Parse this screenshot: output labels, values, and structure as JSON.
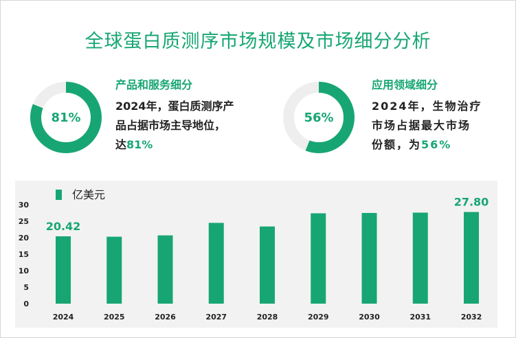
{
  "title": "全球蛋白质测序市场规模及市场细分分析",
  "left_panel": {
    "heading": "产品和服务细分",
    "percent_label": "81%",
    "percent_value": 81,
    "text_line1": "2024年，蛋白质测序产",
    "text_line2": "品占据市场主导地位，",
    "text_line3_prefix": "达",
    "text_line3_highlight": "81%"
  },
  "right_panel": {
    "heading": "应用领域细分",
    "percent_label": "56%",
    "percent_value": 56,
    "text_line1": "2024年，生物治疗",
    "text_line2": "市场占据最大市场",
    "text_line3_prefix": "份额，为",
    "text_line3_highlight": "56%"
  },
  "colors": {
    "accent": "#17a673",
    "ring_track": "#eeeeee",
    "chart_bg": "#f2f2f2"
  },
  "chart_data": {
    "type": "bar",
    "legend": "亿美元",
    "legend_position": "top-left",
    "categories": [
      "2024",
      "2025",
      "2026",
      "2027",
      "2028",
      "2029",
      "2030",
      "2031",
      "2032"
    ],
    "values": [
      20.42,
      20.3,
      20.7,
      24.5,
      23.4,
      27.4,
      27.5,
      27.6,
      27.8
    ],
    "data_labels": [
      {
        "index": 0,
        "text": "20.42"
      },
      {
        "index": 8,
        "text": "27.80"
      }
    ],
    "yticks": [
      "0",
      "5",
      "10",
      "15",
      "20",
      "25",
      "30"
    ],
    "ylim": [
      0,
      30
    ],
    "grid": false
  }
}
